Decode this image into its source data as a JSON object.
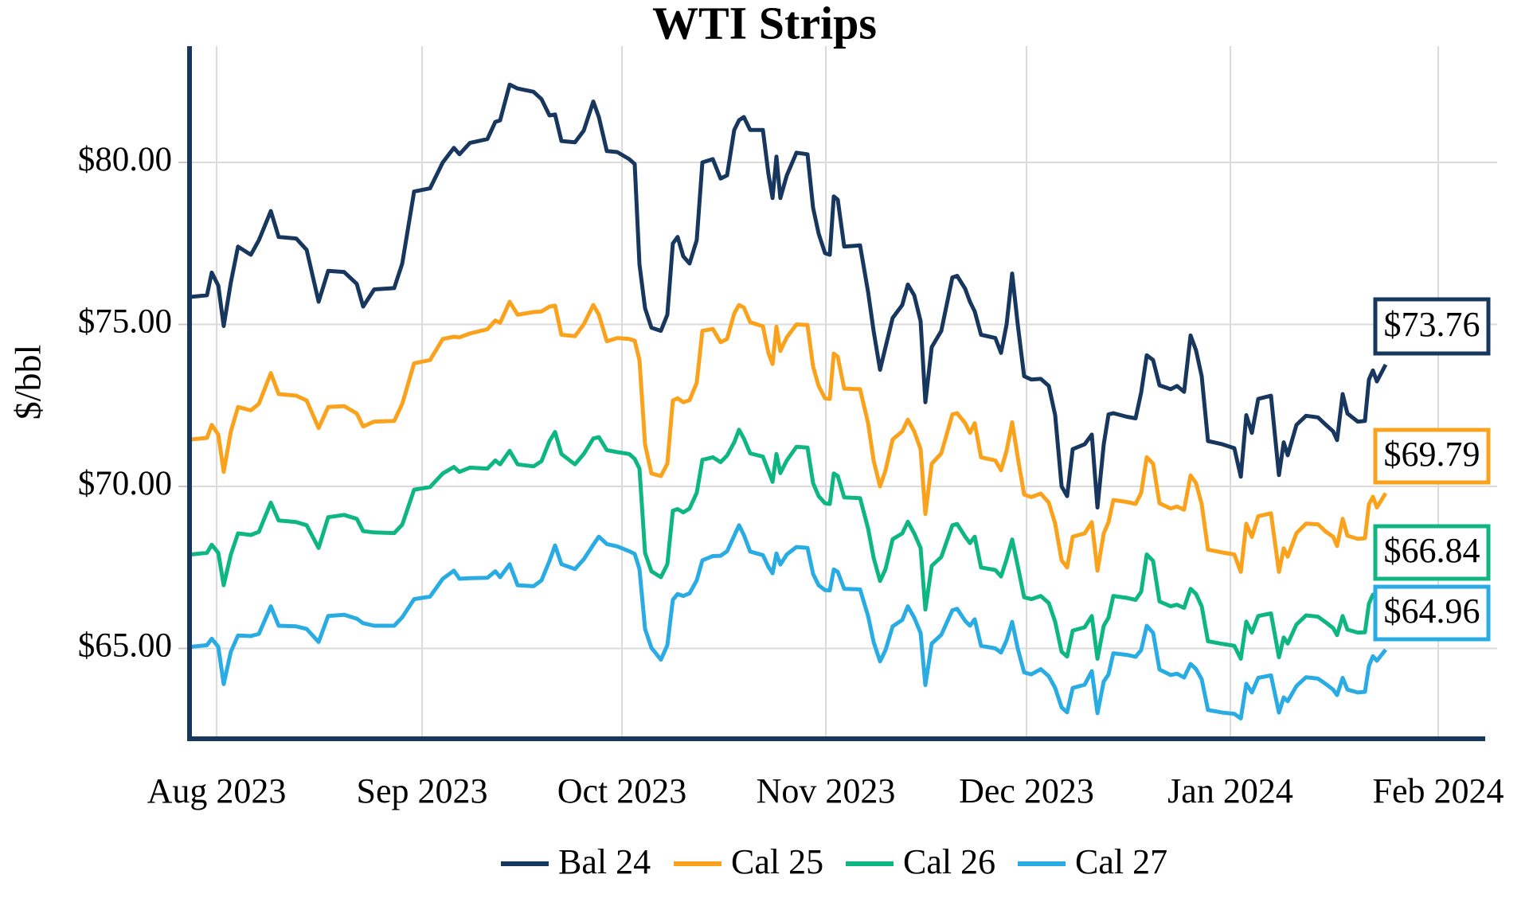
{
  "title": "WTI Strips",
  "y_axis": {
    "label": "$/bbl",
    "tick_labels": [
      "$80.00",
      "$75.00",
      "$70.00",
      "$65.00"
    ],
    "tick_values": [
      80,
      75,
      70,
      65
    ]
  },
  "x_axis": {
    "tick_labels": [
      "Aug 2023",
      "Sep 2023",
      "Oct 2023",
      "Nov 2023",
      "Dec 2023",
      "Jan 2024",
      "Feb 2024"
    ]
  },
  "colors": {
    "bal24": "#17375e",
    "cal25": "#faa21b",
    "cal26": "#0eb781",
    "cal27": "#29abe3",
    "gridline": "#dbdbdb",
    "spine": "#17375e"
  },
  "chart_data": {
    "type": "line",
    "title": "WTI Strips",
    "ylabel": "$/bbl",
    "ylim": [
      62.2,
      83.6
    ],
    "grid": true,
    "legend_position": "bottom",
    "x_unit": "percent of time axis (0 = late Jul 2023, 100 = late Jan 2024)",
    "x_tick_labels": [
      "Aug 2023",
      "Sep 2023",
      "Oct 2023",
      "Nov 2023",
      "Dec 2023",
      "Jan 2024",
      "Feb 2024"
    ],
    "x": [
      0,
      1.33,
      1.73,
      2.27,
      2.73,
      3.33,
      3.93,
      5.0,
      5.67,
      6.67,
      7.33,
      8.8,
      9.67,
      10.67,
      11.47,
      12.8,
      13.87,
      14.4,
      15.33,
      17.0,
      17.67,
      18.67,
      20.0,
      21.07,
      22.0,
      22.47,
      23.33,
      24.8,
      25.47,
      25.87,
      26.67,
      27.33,
      28.67,
      29.33,
      30.0,
      30.47,
      31.0,
      32.13,
      32.87,
      33.67,
      34.13,
      34.8,
      35.67,
      36.67,
      37.13,
      37.53,
      38.0,
      38.53,
      39.33,
      39.87,
      40.33,
      40.73,
      41.2,
      41.73,
      42.33,
      42.8,
      43.67,
      44.33,
      44.87,
      45.47,
      45.87,
      46.27,
      46.8,
      47.87,
      48.33,
      48.67,
      49.0,
      49.33,
      49.87,
      50.67,
      51.6,
      52.07,
      52.53,
      53.07,
      53.47,
      53.8,
      54.13,
      54.67,
      56.0,
      56.67,
      57.13,
      57.67,
      58.13,
      58.73,
      59.53,
      60.0,
      60.53,
      61.07,
      61.47,
      62.0,
      62.8,
      63.73,
      64.13,
      64.8,
      65.2,
      65.6,
      66.13,
      67.33,
      67.8,
      68.27,
      68.73,
      69.2,
      69.73,
      70.33,
      71.13,
      71.8,
      72.33,
      72.87,
      73.33,
      73.8,
      74.8,
      75.4,
      75.87,
      76.4,
      76.8,
      77.2,
      78.33,
      79.07,
      79.53,
      80.0,
      80.53,
      81.07,
      82.0,
      82.53,
      83.13,
      83.67,
      84.13,
      84.6,
      85.13,
      86.33,
      87.33,
      87.87,
      88.33,
      88.8,
      89.33,
      90.4,
      91.07,
      91.47,
      91.8,
      92.53,
      93.33,
      94.33,
      95.0,
      95.6,
      95.93,
      96.4,
      96.8,
      97.67,
      98.27,
      98.6,
      98.93,
      99.27,
      100.0
    ],
    "series": [
      {
        "name": "Bal 24",
        "color": "#17375e",
        "end_label": "$73.76",
        "values": [
          75.85,
          75.9,
          76.6,
          76.2,
          74.95,
          76.3,
          77.4,
          77.15,
          77.6,
          78.5,
          77.7,
          77.65,
          77.3,
          75.7,
          76.65,
          76.62,
          76.25,
          75.55,
          76.08,
          76.12,
          76.88,
          79.1,
          79.2,
          80.0,
          80.45,
          80.25,
          80.6,
          80.72,
          81.25,
          81.3,
          82.4,
          82.28,
          82.18,
          81.95,
          81.45,
          81.48,
          80.66,
          80.62,
          80.98,
          81.88,
          81.4,
          80.35,
          80.32,
          80.1,
          79.95,
          76.85,
          75.5,
          74.9,
          74.8,
          75.3,
          77.5,
          77.7,
          77.1,
          76.88,
          77.6,
          80.0,
          80.1,
          79.5,
          79.6,
          81.0,
          81.3,
          81.4,
          81.0,
          81.0,
          79.65,
          78.9,
          80.18,
          78.9,
          79.6,
          80.3,
          80.25,
          78.6,
          77.8,
          77.2,
          77.15,
          78.95,
          78.85,
          77.4,
          77.44,
          76.0,
          74.8,
          73.6,
          74.3,
          75.2,
          75.6,
          76.23,
          75.9,
          75.1,
          72.6,
          74.3,
          74.8,
          76.45,
          76.5,
          76.1,
          75.7,
          75.4,
          74.68,
          74.58,
          74.12,
          75.0,
          76.57,
          75.0,
          73.4,
          73.3,
          73.32,
          73.1,
          72.2,
          70.0,
          69.7,
          71.15,
          71.3,
          71.6,
          69.35,
          71.3,
          72.22,
          72.26,
          72.15,
          72.1,
          72.9,
          74.05,
          73.9,
          73.12,
          73.0,
          73.1,
          72.92,
          74.66,
          74.2,
          73.4,
          71.4,
          71.3,
          71.18,
          70.3,
          72.2,
          71.65,
          72.7,
          72.8,
          70.35,
          71.36,
          70.96,
          71.9,
          72.18,
          72.13,
          71.9,
          71.7,
          71.43,
          72.85,
          72.25,
          72.0,
          72.02,
          73.3,
          73.58,
          73.24,
          73.76
        ]
      },
      {
        "name": "Cal 25",
        "color": "#faa21b",
        "end_label": "$69.79",
        "values": [
          71.45,
          71.5,
          71.9,
          71.6,
          70.45,
          71.7,
          72.45,
          72.35,
          72.55,
          73.5,
          72.85,
          72.8,
          72.65,
          71.8,
          72.45,
          72.48,
          72.25,
          71.85,
          72.0,
          72.02,
          72.55,
          73.8,
          73.9,
          74.55,
          74.62,
          74.6,
          74.72,
          74.85,
          75.12,
          75.05,
          75.7,
          75.3,
          75.38,
          75.4,
          75.55,
          75.58,
          74.68,
          74.64,
          75.0,
          75.6,
          75.3,
          74.48,
          74.58,
          74.55,
          74.5,
          73.9,
          71.3,
          70.4,
          70.32,
          70.7,
          72.65,
          72.72,
          72.6,
          72.66,
          73.2,
          74.8,
          74.86,
          74.45,
          74.55,
          75.34,
          75.6,
          75.52,
          75.07,
          74.94,
          74.12,
          73.78,
          74.93,
          74.18,
          74.6,
          75.0,
          74.98,
          73.7,
          73.1,
          72.72,
          72.7,
          74.1,
          74.0,
          73.02,
          73.0,
          71.95,
          70.8,
          70.0,
          70.5,
          71.45,
          71.7,
          72.06,
          71.7,
          71.15,
          69.15,
          70.7,
          71.02,
          72.22,
          72.26,
          71.95,
          71.65,
          71.95,
          70.9,
          70.8,
          70.5,
          71.1,
          71.98,
          70.9,
          69.75,
          69.67,
          69.78,
          69.5,
          68.85,
          67.72,
          67.5,
          68.45,
          68.55,
          68.9,
          67.4,
          68.55,
          68.9,
          69.58,
          69.52,
          69.46,
          69.8,
          70.9,
          70.7,
          69.48,
          69.32,
          69.38,
          69.28,
          70.34,
          70.1,
          69.45,
          68.05,
          67.96,
          67.9,
          67.36,
          68.85,
          68.44,
          69.08,
          69.17,
          67.36,
          68.09,
          67.83,
          68.56,
          68.85,
          68.83,
          68.6,
          68.45,
          68.16,
          69.0,
          68.48,
          68.38,
          68.4,
          69.45,
          69.68,
          69.35,
          69.79
        ]
      },
      {
        "name": "Cal 26",
        "color": "#0eb781",
        "end_label": "$66.84",
        "values": [
          67.9,
          67.95,
          68.2,
          67.95,
          66.95,
          67.9,
          68.55,
          68.5,
          68.6,
          69.5,
          68.95,
          68.9,
          68.8,
          68.1,
          69.05,
          69.12,
          69.0,
          68.62,
          68.58,
          68.56,
          68.82,
          69.9,
          69.98,
          70.4,
          70.6,
          70.45,
          70.58,
          70.55,
          70.8,
          70.68,
          71.1,
          70.68,
          70.62,
          70.78,
          71.4,
          71.68,
          71.0,
          70.68,
          71.0,
          71.48,
          71.52,
          71.12,
          71.06,
          71.0,
          70.85,
          70.55,
          67.95,
          67.38,
          67.2,
          67.6,
          69.25,
          69.3,
          69.2,
          69.32,
          69.8,
          70.82,
          70.9,
          70.75,
          70.95,
          71.36,
          71.75,
          71.48,
          71.02,
          70.92,
          70.48,
          70.14,
          71.0,
          70.41,
          70.8,
          71.22,
          71.2,
          70.1,
          69.7,
          69.48,
          69.46,
          70.4,
          70.32,
          69.66,
          69.64,
          68.7,
          67.8,
          67.08,
          67.45,
          68.37,
          68.55,
          68.91,
          68.55,
          68.1,
          66.2,
          67.55,
          67.82,
          68.8,
          68.84,
          68.45,
          68.25,
          68.45,
          67.5,
          67.42,
          67.22,
          67.75,
          68.36,
          67.55,
          66.58,
          66.52,
          66.62,
          66.4,
          65.82,
          64.9,
          64.75,
          65.55,
          65.65,
          66.0,
          64.68,
          65.7,
          65.95,
          66.62,
          66.56,
          66.5,
          66.75,
          67.9,
          67.7,
          66.45,
          66.3,
          66.35,
          66.25,
          66.84,
          66.68,
          66.3,
          65.22,
          65.14,
          65.08,
          64.68,
          65.83,
          65.49,
          66.0,
          66.08,
          64.73,
          65.34,
          65.15,
          65.74,
          66.02,
          65.98,
          65.8,
          65.63,
          65.41,
          66.0,
          65.58,
          65.49,
          65.5,
          66.38,
          66.66,
          66.52,
          66.84
        ]
      },
      {
        "name": "Cal 27",
        "color": "#29abe3",
        "end_label": "$64.96",
        "values": [
          65.05,
          65.1,
          65.3,
          65.05,
          63.9,
          64.9,
          65.4,
          65.38,
          65.45,
          66.3,
          65.7,
          65.68,
          65.6,
          65.2,
          66.0,
          66.04,
          65.92,
          65.78,
          65.7,
          65.7,
          65.96,
          66.52,
          66.6,
          67.15,
          67.4,
          67.15,
          67.17,
          67.18,
          67.38,
          67.2,
          67.6,
          66.95,
          66.92,
          67.1,
          67.7,
          68.18,
          67.6,
          67.45,
          67.75,
          68.2,
          68.45,
          68.22,
          68.15,
          68.0,
          67.92,
          67.45,
          65.6,
          65.02,
          64.65,
          65.1,
          66.5,
          66.68,
          66.62,
          66.7,
          67.1,
          67.72,
          67.85,
          67.86,
          68.0,
          68.48,
          68.8,
          68.5,
          67.99,
          67.88,
          67.52,
          67.32,
          67.93,
          67.59,
          67.9,
          68.13,
          68.1,
          67.3,
          66.95,
          66.8,
          66.79,
          67.44,
          67.36,
          66.84,
          66.82,
          66.0,
          65.2,
          64.6,
          64.95,
          65.68,
          65.88,
          66.3,
          65.95,
          65.48,
          63.87,
          65.15,
          65.42,
          66.18,
          66.22,
          65.85,
          65.7,
          65.9,
          65.08,
          65.0,
          64.87,
          65.25,
          65.82,
          65.0,
          64.26,
          64.2,
          64.36,
          64.14,
          63.78,
          63.18,
          63.03,
          63.78,
          63.88,
          64.3,
          63.0,
          63.98,
          64.2,
          64.85,
          64.8,
          64.74,
          64.95,
          65.7,
          65.48,
          64.35,
          64.18,
          64.22,
          64.1,
          64.52,
          64.36,
          64.05,
          63.1,
          63.02,
          62.98,
          62.84,
          63.91,
          63.64,
          64.09,
          64.17,
          63.02,
          63.49,
          63.37,
          63.84,
          64.11,
          64.07,
          63.9,
          63.73,
          63.56,
          64.09,
          63.73,
          63.64,
          63.66,
          64.47,
          64.76,
          64.62,
          64.96
        ]
      }
    ]
  }
}
